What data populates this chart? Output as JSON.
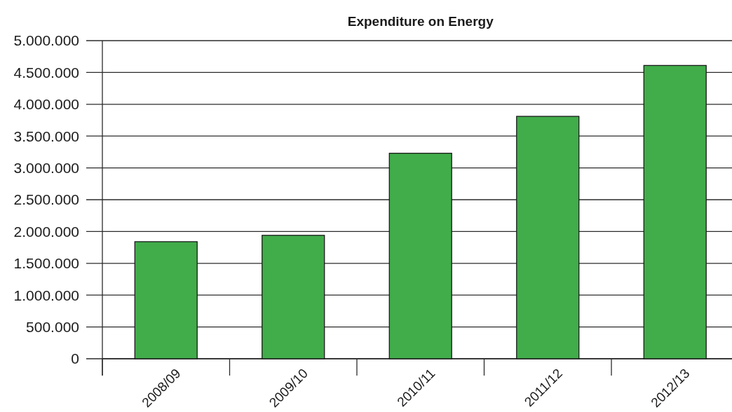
{
  "chart_data": {
    "type": "bar",
    "title": "Expenditure on Energy",
    "categories": [
      "2008/09",
      "2009/10",
      "2010/11",
      "2011/12",
      "2012/13"
    ],
    "values": [
      1840000,
      1940000,
      3230000,
      3810000,
      4610000
    ],
    "color": "#41ac4a",
    "ylim": [
      0,
      5000000
    ],
    "yticks": [
      0,
      {
        "value": 500000,
        "label": "500.000"
      },
      {
        "value": 1000000,
        "label": "1.000.000"
      },
      {
        "value": 1500000,
        "label": "1.500.000"
      },
      {
        "value": 2000000,
        "label": "2.000.000"
      },
      {
        "value": 2500000,
        "label": "2.500.000"
      },
      {
        "value": 3000000,
        "label": "3.000.000"
      },
      {
        "value": 3500000,
        "label": "3.500.000"
      },
      {
        "value": 4000000,
        "label": "4.000.000"
      },
      {
        "value": 4500000,
        "label": "4.500.000"
      },
      {
        "value": 5000000,
        "label": "5.000.000"
      }
    ],
    "grid": "y"
  }
}
